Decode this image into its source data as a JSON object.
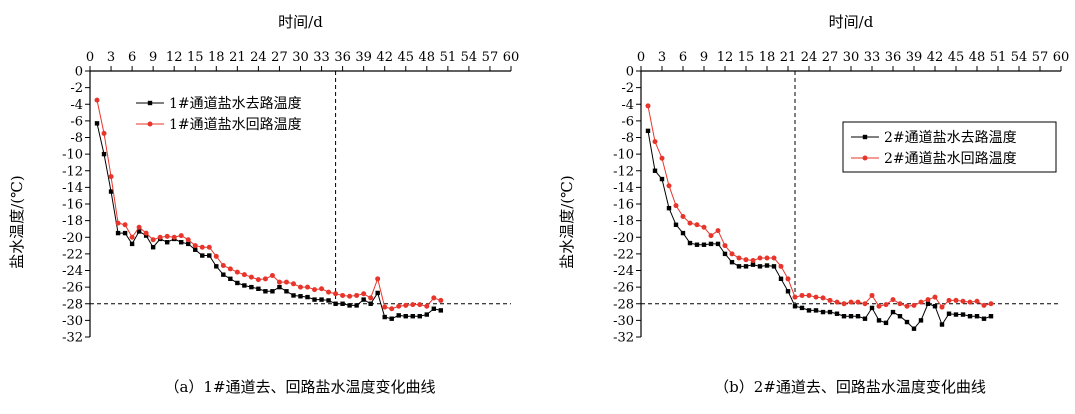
{
  "colors": {
    "return": "#e8352b",
    "supply": "#000000",
    "axis": "#000000"
  },
  "chart_data": [
    {
      "type": "line",
      "title": "时间/d",
      "ylabel": "盐水温度/(℃)",
      "caption": "（a）1#通道去、回路盐水温度变化曲线",
      "xlim": [
        0,
        60
      ],
      "ylim": [
        -32,
        0
      ],
      "xticks": [
        "0",
        "3",
        "6",
        "9",
        "12",
        "15",
        "18",
        "21",
        "24",
        "27",
        "30",
        "33",
        "36",
        "39",
        "42",
        "45",
        "48",
        "51",
        "54",
        "57",
        "60"
      ],
      "yticks": [
        "0",
        "-2",
        "-4",
        "-6",
        "-8",
        "-10",
        "-12",
        "-14",
        "-16",
        "-18",
        "-20",
        "-22",
        "-24",
        "-26",
        "-28",
        "-30",
        "-32"
      ],
      "ref_y": -28,
      "ref_x": 35,
      "legend_position": "top-center",
      "series": [
        {
          "name": "1#通道盐水去路温度",
          "color": "#000000",
          "marker": "square",
          "x": [
            1,
            2,
            3,
            4,
            5,
            6,
            7,
            8,
            9,
            10,
            11,
            12,
            13,
            14,
            15,
            16,
            17,
            18,
            19,
            20,
            21,
            22,
            23,
            24,
            25,
            26,
            27,
            28,
            29,
            30,
            31,
            32,
            33,
            34,
            35,
            36,
            37,
            38,
            39,
            40,
            41,
            42,
            43,
            44,
            45,
            46,
            47,
            48,
            49,
            50
          ],
          "y": [
            -6.3,
            -10,
            -14.5,
            -19.5,
            -19.5,
            -20.8,
            -19.3,
            -19.8,
            -21.2,
            -20.2,
            -20.6,
            -20.2,
            -20.6,
            -20.8,
            -21.5,
            -22.2,
            -22.2,
            -23.5,
            -24.5,
            -25,
            -25.5,
            -25.8,
            -26,
            -26.2,
            -26.5,
            -26.5,
            -26,
            -26.5,
            -27,
            -27.1,
            -27.2,
            -27.5,
            -27.5,
            -27.6,
            -28,
            -28,
            -28.2,
            -28.2,
            -27.5,
            -28,
            -26.7,
            -29.6,
            -29.8,
            -29.4,
            -29.5,
            -29.5,
            -29.5,
            -29.3,
            -28.6,
            -28.8
          ]
        },
        {
          "name": "1#通道盐水回路温度",
          "color": "#e8352b",
          "marker": "circle",
          "x": [
            1,
            2,
            3,
            4,
            5,
            6,
            7,
            8,
            9,
            10,
            11,
            12,
            13,
            14,
            15,
            16,
            17,
            18,
            19,
            20,
            21,
            22,
            23,
            24,
            25,
            26,
            27,
            28,
            29,
            30,
            31,
            32,
            33,
            34,
            35,
            36,
            37,
            38,
            39,
            40,
            41,
            42,
            43,
            44,
            45,
            46,
            47,
            48,
            49,
            50
          ],
          "y": [
            -3.5,
            -7.5,
            -12.7,
            -18.3,
            -18.5,
            -20,
            -18.8,
            -19.5,
            -20.3,
            -20,
            -19.9,
            -20,
            -19.8,
            -20.3,
            -21,
            -21.2,
            -21.2,
            -22.3,
            -23.4,
            -23.8,
            -24.2,
            -24.5,
            -24.8,
            -25.1,
            -25,
            -24.6,
            -25.4,
            -25.4,
            -25.6,
            -26,
            -26,
            -26.3,
            -26.2,
            -26.6,
            -26.8,
            -27,
            -27.1,
            -27,
            -26.8,
            -27.3,
            -25,
            -28.4,
            -28.6,
            -28.3,
            -28.2,
            -28.1,
            -28.1,
            -28.3,
            -27.3,
            -27.6
          ]
        }
      ]
    },
    {
      "type": "line",
      "title": "时间/d",
      "ylabel": "盐水温度/(℃)",
      "caption": "（b）2#通道去、回路盐水温度变化曲线",
      "xlim": [
        0,
        60
      ],
      "ylim": [
        -32,
        0
      ],
      "xticks": [
        "0",
        "3",
        "6",
        "9",
        "12",
        "15",
        "18",
        "21",
        "24",
        "27",
        "30",
        "33",
        "36",
        "39",
        "42",
        "45",
        "48",
        "51",
        "54",
        "57",
        "60"
      ],
      "yticks": [
        "0",
        "-2",
        "-4",
        "-6",
        "-8",
        "-10",
        "-12",
        "-14",
        "-16",
        "-18",
        "-20",
        "-22",
        "-24",
        "-26",
        "-28",
        "-30",
        "-32"
      ],
      "ref_y": -28,
      "ref_x": 22,
      "legend_position": "top-right",
      "series": [
        {
          "name": "2#通道盐水去路温度",
          "color": "#000000",
          "marker": "square",
          "x": [
            1,
            2,
            3,
            4,
            5,
            6,
            7,
            8,
            9,
            10,
            11,
            12,
            13,
            14,
            15,
            16,
            17,
            18,
            19,
            20,
            21,
            22,
            23,
            24,
            25,
            26,
            27,
            28,
            29,
            30,
            31,
            32,
            33,
            34,
            35,
            36,
            37,
            38,
            39,
            40,
            41,
            42,
            43,
            44,
            45,
            46,
            47,
            48,
            49,
            50
          ],
          "y": [
            -7.2,
            -12,
            -13,
            -16.5,
            -18.5,
            -19.5,
            -20.7,
            -20.9,
            -20.9,
            -20.8,
            -20.8,
            -22,
            -23,
            -23.5,
            -23.5,
            -23.3,
            -23.5,
            -23.4,
            -23.5,
            -25,
            -26.5,
            -28.3,
            -28.5,
            -28.8,
            -28.8,
            -29,
            -29,
            -29.2,
            -29.5,
            -29.5,
            -29.5,
            -29.8,
            -28.5,
            -30,
            -30.3,
            -29,
            -29.5,
            -30.2,
            -31,
            -30,
            -28,
            -28.3,
            -30.5,
            -29.2,
            -29.3,
            -29.3,
            -29.5,
            -29.5,
            -29.8,
            -29.5
          ]
        },
        {
          "name": "2#通道盐水回路温度",
          "color": "#e8352b",
          "marker": "circle",
          "x": [
            1,
            2,
            3,
            4,
            5,
            6,
            7,
            8,
            9,
            10,
            11,
            12,
            13,
            14,
            15,
            16,
            17,
            18,
            19,
            20,
            21,
            22,
            23,
            24,
            25,
            26,
            27,
            28,
            29,
            30,
            31,
            32,
            33,
            34,
            35,
            36,
            37,
            38,
            39,
            40,
            41,
            42,
            43,
            44,
            45,
            46,
            47,
            48,
            49,
            50
          ],
          "y": [
            -4.2,
            -8.5,
            -10.5,
            -13.8,
            -16.2,
            -17.5,
            -18.3,
            -18.5,
            -18.8,
            -19.8,
            -19.2,
            -21,
            -22,
            -22.5,
            -22.7,
            -22.8,
            -22.5,
            -22.5,
            -22.5,
            -23.5,
            -25,
            -27.2,
            -27,
            -27,
            -27.2,
            -27.3,
            -27.6,
            -27.8,
            -28,
            -27.8,
            -27.8,
            -28,
            -27,
            -28.3,
            -28.1,
            -27.5,
            -28,
            -28.3,
            -28.2,
            -27.8,
            -27.5,
            -27.2,
            -28.4,
            -27.6,
            -27.6,
            -27.7,
            -27.8,
            -27.7,
            -28.2,
            -28
          ]
        }
      ]
    }
  ]
}
